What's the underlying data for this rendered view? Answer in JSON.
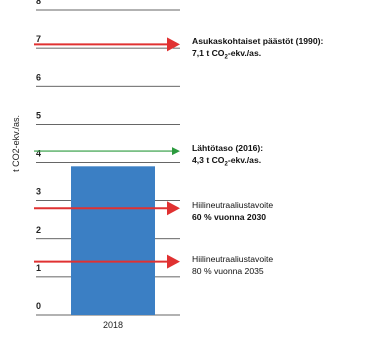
{
  "chart_data": {
    "type": "bar",
    "ylabel": "t CO2-ekv./as.",
    "ylim": [
      0,
      8
    ],
    "yticks": [
      0,
      1,
      2,
      3,
      4,
      5,
      6,
      7,
      8
    ],
    "grid": true,
    "categories": [
      "2018"
    ],
    "values": [
      3.9
    ],
    "bar_color": "#3b7fc4",
    "reference_arrows": [
      {
        "value": 7.1,
        "color": "#e03131",
        "label_line1": "Asukaskohtaiset päästöt (1990):",
        "label_line2_prefix": "7,1 t CO",
        "label_line2_sub": "2",
        "label_line2_suffix": "-ekv./as."
      },
      {
        "value": 4.3,
        "color": "#2b9a3e",
        "label_line1": "Lähtötaso (2016):",
        "label_line2_prefix": "4,3 t CO",
        "label_line2_sub": "2",
        "label_line2_suffix": "-ekv./as."
      },
      {
        "value": 2.8,
        "color": "#e03131",
        "label_line1": "Hiilineutraaliustavoite",
        "label_line2_prefix": "60 % vuonna 2030",
        "label_line2_sub": "",
        "label_line2_suffix": "",
        "bold_line2": true
      },
      {
        "value": 1.4,
        "color": "#e03131",
        "label_line1": "Hiilineutraaliustavoite",
        "label_line2_prefix": "80 % vuonna 2035",
        "label_line2_sub": "",
        "label_line2_suffix": "",
        "bold_line2": false
      }
    ]
  }
}
